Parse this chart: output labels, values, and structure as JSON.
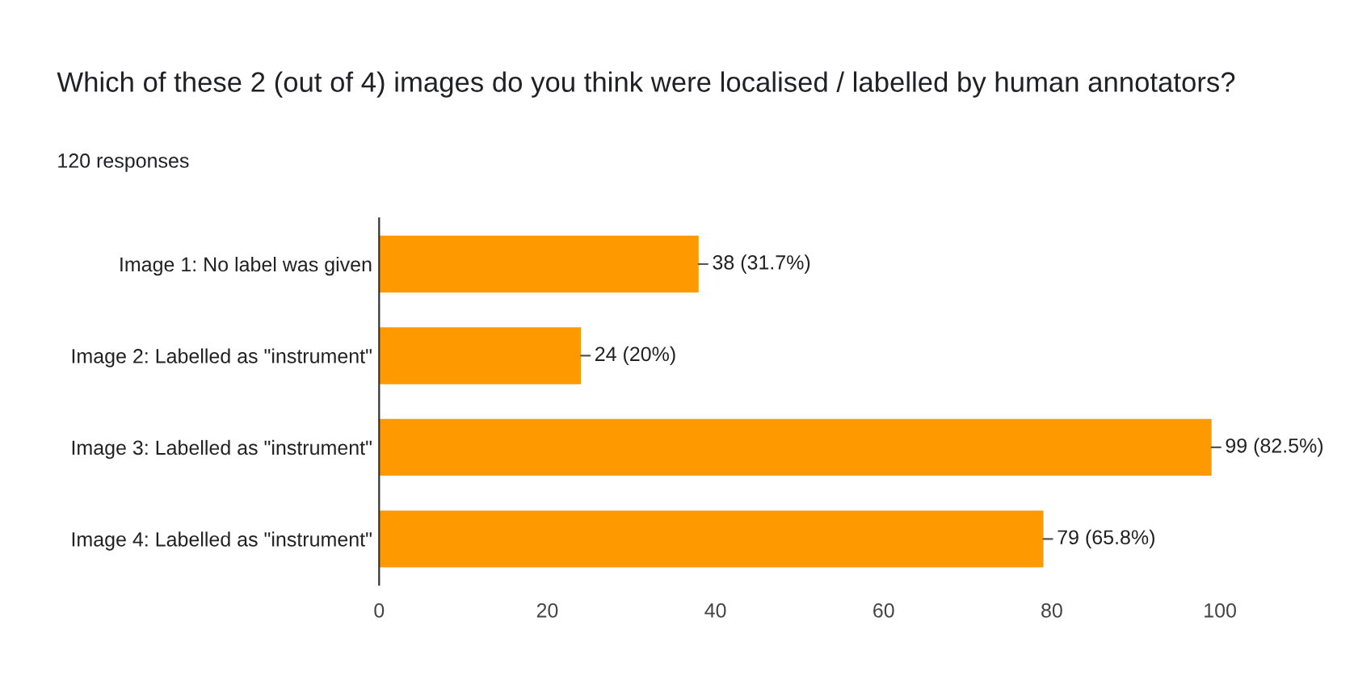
{
  "chart_data": {
    "type": "bar",
    "orientation": "horizontal",
    "title": "Which of these 2 (out of 4) images do you think were localised / labelled by human annotators?",
    "subtitle": "120 responses",
    "categories": [
      "Image 1: No label was given",
      "Image 2: Labelled as \"instrument\"",
      "Image 3: Labelled as \"instrument\"",
      "Image 4: Labelled as \"instrument\""
    ],
    "values": [
      38,
      24,
      99,
      79
    ],
    "value_labels": [
      "38 (31.7%)",
      "24 (20%)",
      "99 (82.5%)",
      "79 (65.8%)"
    ],
    "color": "#ff9900",
    "xlim": [
      0,
      100
    ],
    "xticks": [
      0,
      20,
      40,
      60,
      80,
      100
    ],
    "grid": false,
    "legend": false
  }
}
